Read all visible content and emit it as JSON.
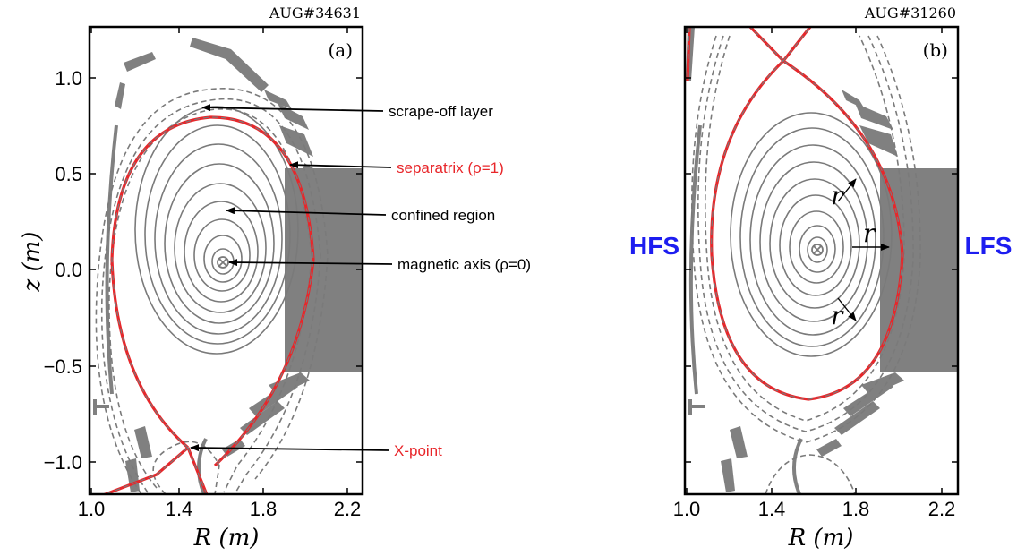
{
  "panel_a": {
    "shot": "AUG#34631",
    "letter": "(a)",
    "ylabel": "z (m)",
    "xlabel": "R (m)",
    "xticks": [
      "1.0",
      "1.4",
      "1.8",
      "2.2"
    ],
    "yticks": [
      "1.0",
      "0.5",
      "0.0",
      "−0.5",
      "−1.0"
    ],
    "annotations": {
      "sol": "scrape-off layer",
      "separatrix": "separatrix (ρ=1)",
      "confined": "confined region",
      "axis": "magnetic axis (ρ=0)",
      "xpoint": "X-point"
    }
  },
  "panel_b": {
    "shot": "AUG#31260",
    "letter": "(b)",
    "xlabel": "R (m)",
    "xticks": [
      "1.0",
      "1.4",
      "1.8",
      "2.2"
    ],
    "hfs": "HFS",
    "lfs": "LFS",
    "r_label": "r"
  },
  "colors": {
    "separatrix": "#e8262a",
    "surface": "#7a7a7a",
    "wall": "#808080",
    "side_label": "#1d1df0",
    "annot_red": "#e8262a"
  }
}
